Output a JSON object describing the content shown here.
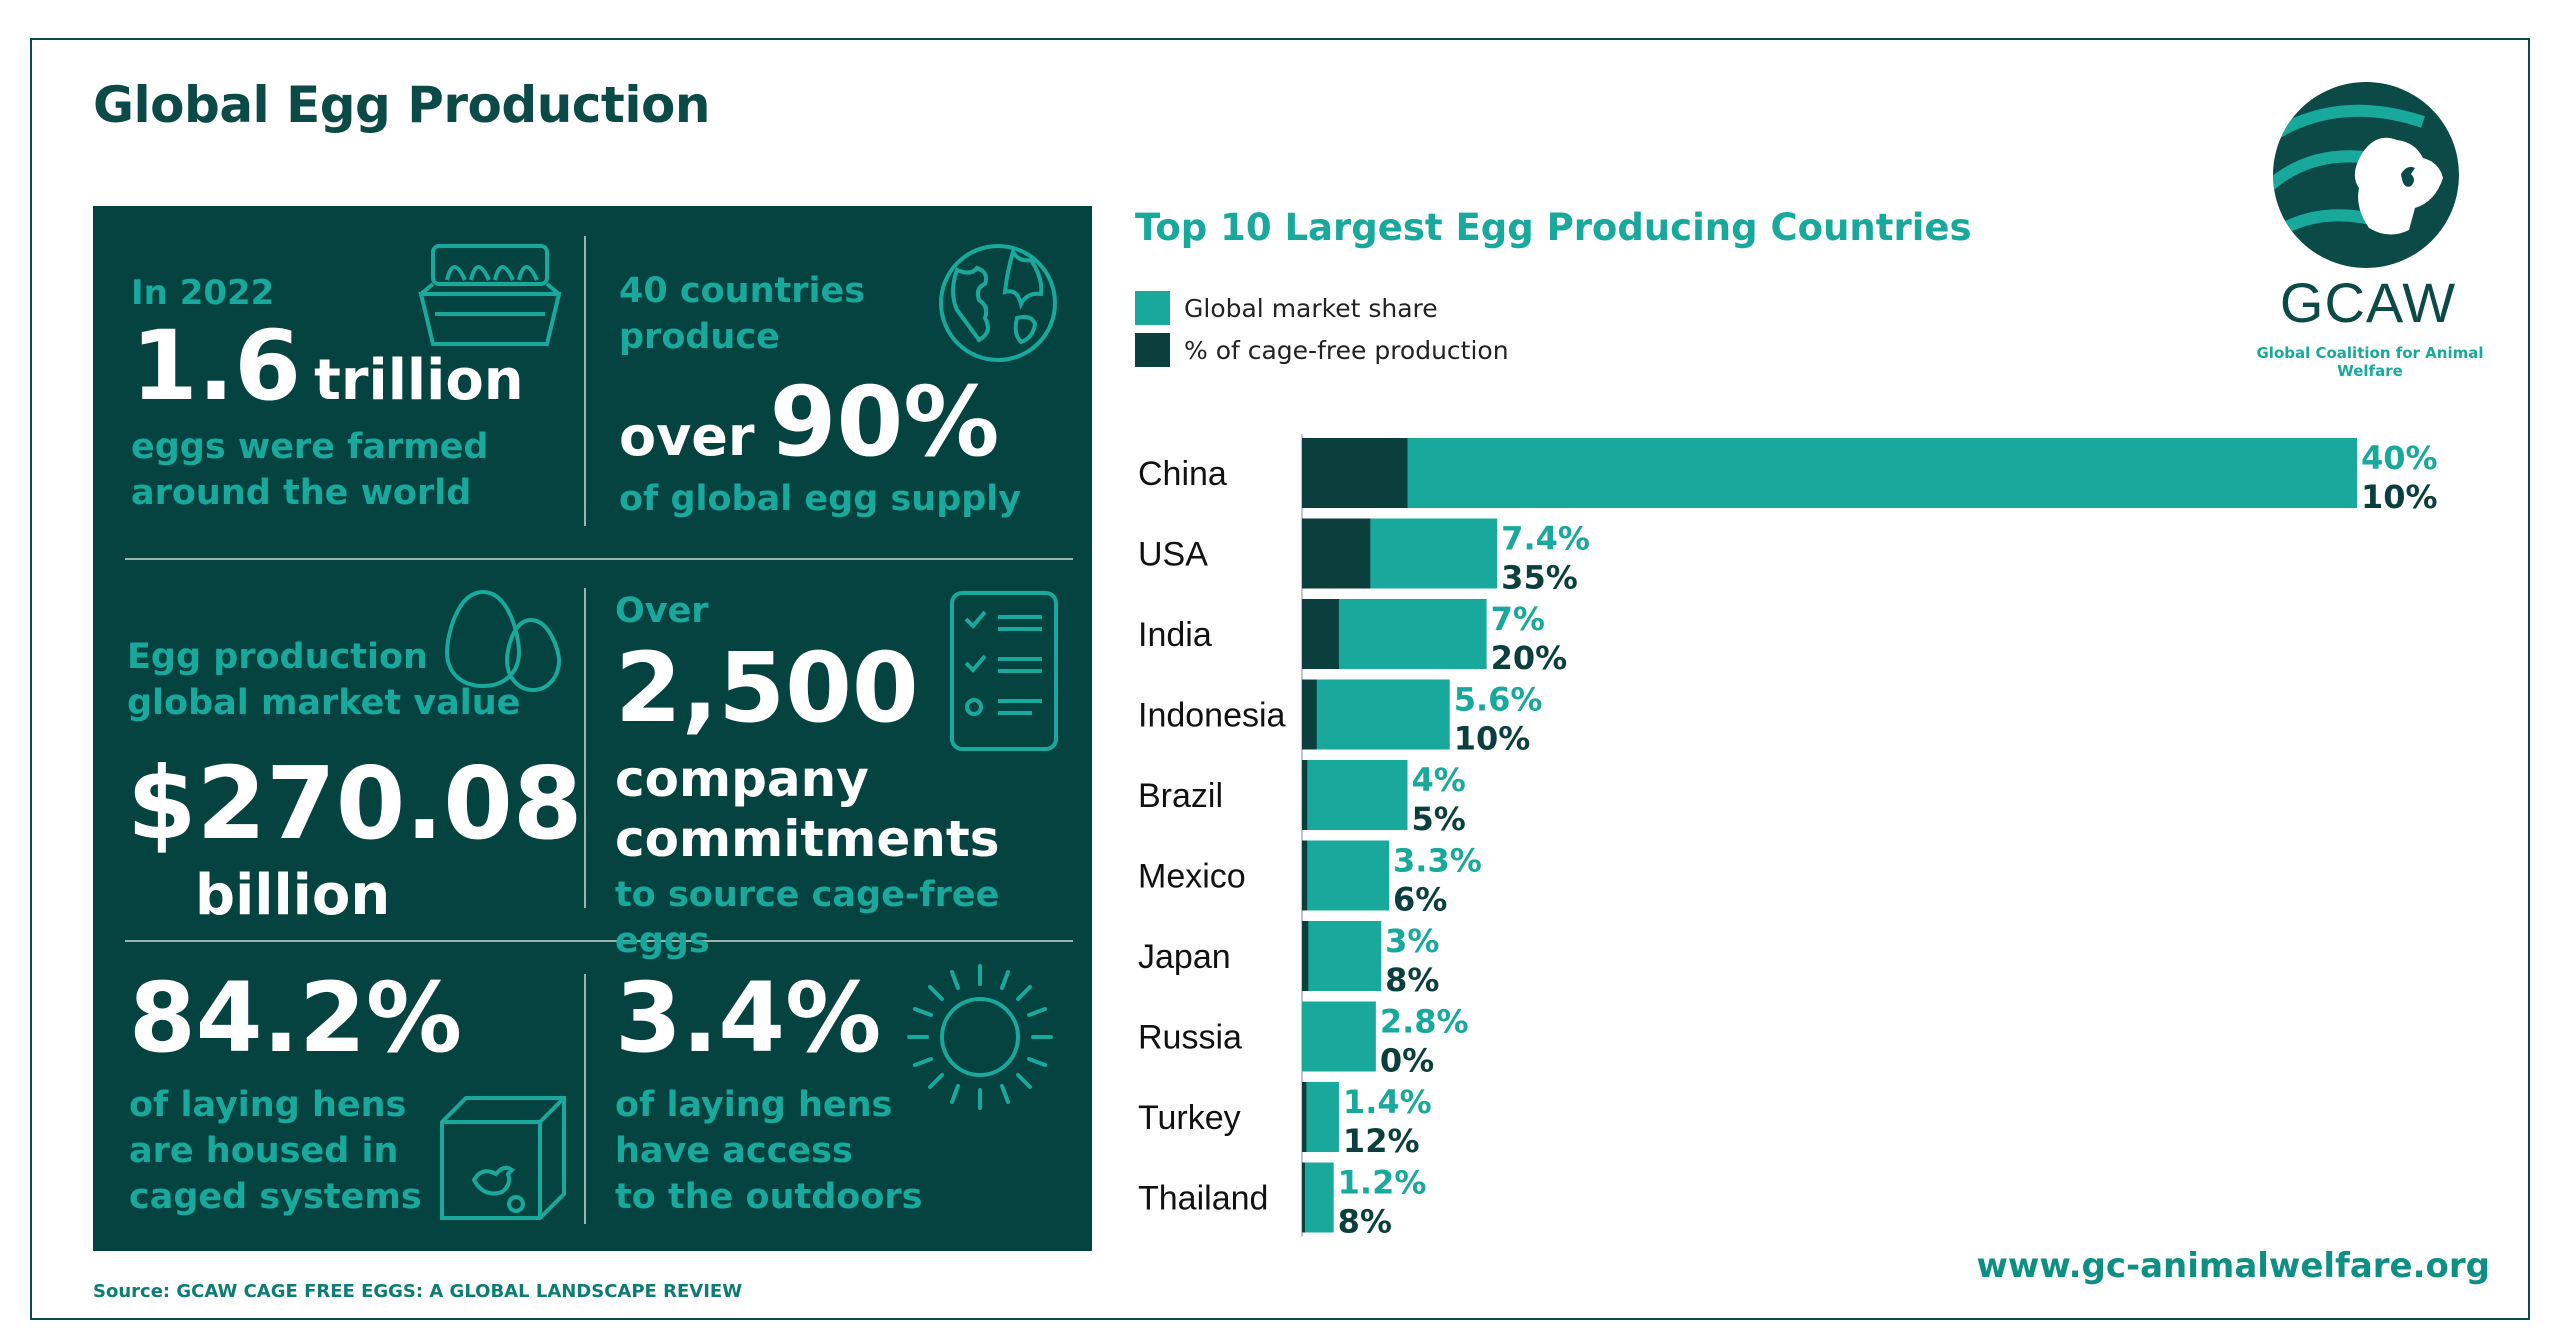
{
  "title": "Global Egg Production",
  "colors": {
    "dark": "#044340",
    "teal": "#19a89c",
    "cage": "#0b3f3d"
  },
  "stats": {
    "s1": {
      "pre": "In 2022",
      "number": "1.6",
      "unit": "trillion",
      "desc1": "eggs were farmed",
      "desc2": "around the world",
      "icon": "egg-carton-icon"
    },
    "s2": {
      "pre1": "40 countries",
      "pre2": "produce",
      "prefix": "over",
      "number": "90%",
      "desc": "of global egg supply",
      "icon": "globe-icon"
    },
    "s3": {
      "pre1": "Egg production",
      "pre2": "global market value",
      "number": "$270.08",
      "unit": "billion",
      "icon": "eggs-icon"
    },
    "s4": {
      "pre": "Over",
      "number": "2,500",
      "line1": "company",
      "line2": "commitments",
      "desc": "to source cage-free eggs",
      "icon": "checklist-icon"
    },
    "s5": {
      "number": "84.2%",
      "desc1": "of laying hens",
      "desc2": "are housed in",
      "desc3": "caged systems",
      "icon": "cage-icon"
    },
    "s6": {
      "number": "3.4%",
      "desc1": "of laying hens",
      "desc2": "have access",
      "desc3": "to the outdoors",
      "icon": "sun-icon"
    }
  },
  "source": "Source: GCAW CAGE FREE EGGS: A GLOBAL LANDSCAPE REVIEW",
  "website": "www.gc-animalwelfare.org",
  "logo": {
    "name": "GCAW",
    "sub": "Global Coalition for Animal Welfare"
  },
  "chart_data": {
    "type": "bar",
    "orientation": "horizontal",
    "title": "Top 10 Largest Egg Producing Countries",
    "legend": [
      "Global market share",
      "% of cage-free production"
    ],
    "categories": [
      "China",
      "USA",
      "India",
      "Indonesia",
      "Brazil",
      "Mexico",
      "Japan",
      "Russia",
      "Turkey",
      "Thailand"
    ],
    "series": [
      {
        "name": "Global market share",
        "values": [
          40,
          7.4,
          7,
          5.6,
          4,
          3.3,
          3,
          2.8,
          1.4,
          1.2
        ],
        "labels": [
          "40%",
          "7.4%",
          "7%",
          "5.6%",
          "4%",
          "3.3%",
          "3%",
          "2.8%",
          "1.4%",
          "1.2%"
        ]
      },
      {
        "name": "% of cage-free production",
        "values": [
          10,
          35,
          20,
          10,
          5,
          6,
          8,
          0,
          12,
          8
        ],
        "labels": [
          "10%",
          "35%",
          "20%",
          "10%",
          "5%",
          "6%",
          "8%",
          "0%",
          "12%",
          "8%"
        ]
      }
    ],
    "note": "cage-free share is drawn as a fraction of each country's bar"
  }
}
